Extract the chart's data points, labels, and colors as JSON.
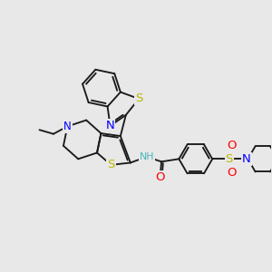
{
  "bg_color": "#e8e8e8",
  "bond_color": "#1a1a1a",
  "atom_colors": {
    "N": "#0000ff",
    "S": "#b8b800",
    "O": "#ff0000",
    "NH": "#4ab5b5",
    "C": "#1a1a1a"
  },
  "lw": 1.35
}
